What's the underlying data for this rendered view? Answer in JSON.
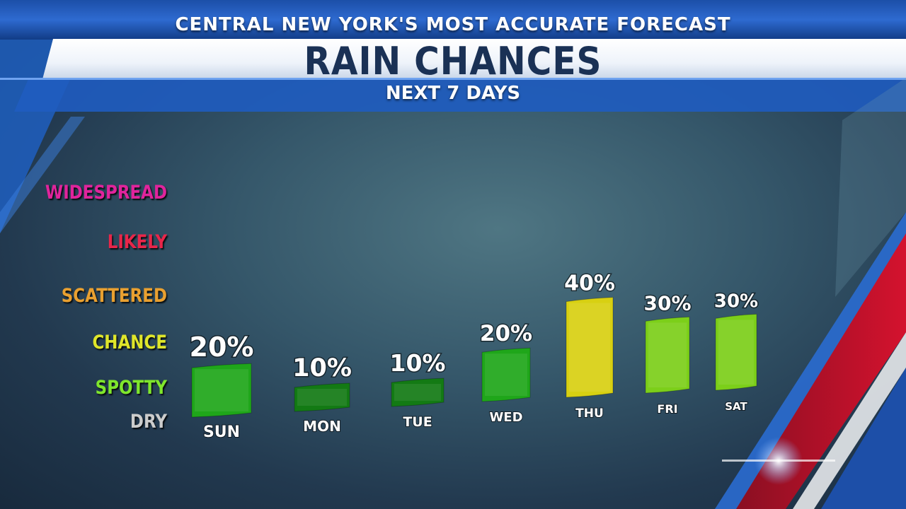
{
  "header": {
    "top_banner": "CENTRAL NEW YORK'S MOST ACCURATE FORECAST",
    "title": "RAIN CHANCES",
    "subtitle": "NEXT 7 DAYS"
  },
  "levels": [
    {
      "label": "WIDESPREAD",
      "color": "#e0249c"
    },
    {
      "label": "LIKELY",
      "color": "#e8264a"
    },
    {
      "label": "SCATTERED",
      "color": "#e9a030"
    },
    {
      "label": "CHANCE",
      "color": "#dfe62a"
    },
    {
      "label": "SPOTTY",
      "color": "#7fe62c"
    },
    {
      "label": "DRY",
      "color": "#cccccc"
    }
  ],
  "chart_data": {
    "type": "bar",
    "title": "RAIN CHANCES",
    "subtitle": "NEXT 7 DAYS",
    "categories": [
      "SUN",
      "MON",
      "TUE",
      "WED",
      "THU",
      "FRI",
      "SAT"
    ],
    "values": [
      20,
      10,
      10,
      20,
      40,
      30,
      30
    ],
    "value_labels": [
      "20%",
      "10%",
      "10%",
      "20%",
      "40%",
      "30%",
      "30%"
    ],
    "unit": "%",
    "bar_colors": [
      "#1fa61a",
      "#137a14",
      "#137a14",
      "#1fa61a",
      "#d8d012",
      "#7ccf1a",
      "#7ccf1a"
    ],
    "ylim": [
      0,
      100
    ],
    "grid": false,
    "legend": "none"
  }
}
